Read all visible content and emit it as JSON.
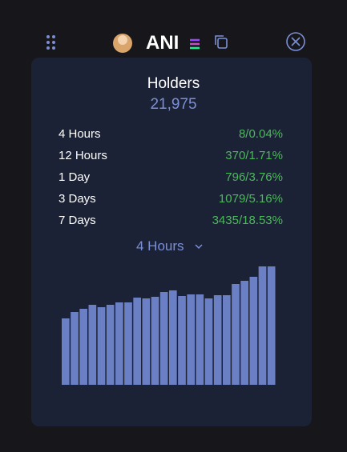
{
  "header": {
    "symbol": "ANI"
  },
  "holders": {
    "title": "Holders",
    "count": "21,975"
  },
  "changes": [
    {
      "period": "4 Hours",
      "value": "8/0.04%"
    },
    {
      "period": "12 Hours",
      "value": "370/1.71%"
    },
    {
      "period": "1 Day",
      "value": "796/3.76%"
    },
    {
      "period": "3 Days",
      "value": "1079/5.16%"
    },
    {
      "period": "7 Days",
      "value": "3435/18.53%"
    }
  ],
  "range_selector": "4 Hours",
  "chart": {
    "type": "bar",
    "color": "#6b7fc4",
    "values": [
      83,
      91,
      95,
      100,
      97,
      100,
      103,
      103,
      109,
      108,
      110,
      116,
      118,
      111,
      113,
      113,
      108,
      112,
      112,
      126,
      130,
      135,
      148,
      148
    ]
  }
}
